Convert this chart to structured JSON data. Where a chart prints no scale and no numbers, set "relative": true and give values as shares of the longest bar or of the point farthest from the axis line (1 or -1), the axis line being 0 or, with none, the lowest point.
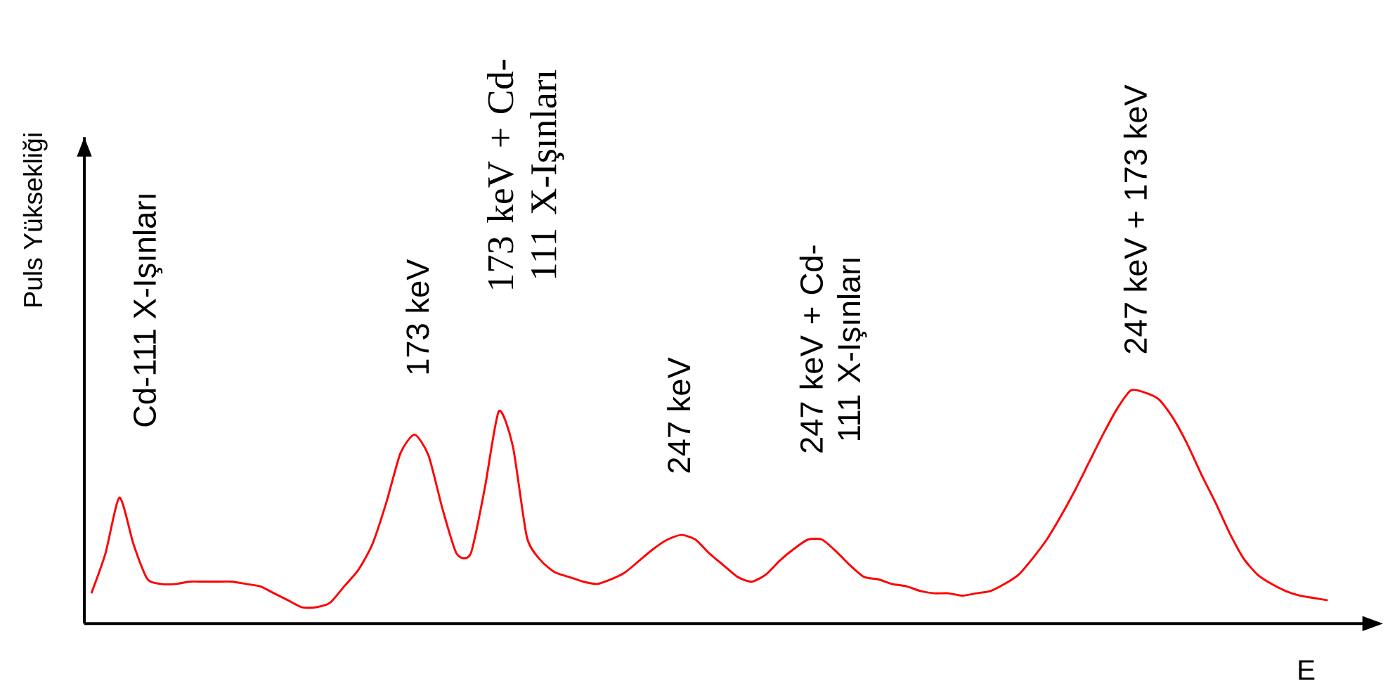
{
  "chart_data": {
    "type": "line",
    "relative": true,
    "ylabel": "Puls Yüksekliği",
    "xlabel": "E",
    "categories": [
      null,
      null,
      null,
      null,
      null,
      null,
      null,
      null,
      null,
      null,
      null,
      null,
      null,
      null,
      null,
      null,
      null,
      null,
      null,
      null,
      null,
      null,
      null,
      null,
      null,
      null,
      null,
      null,
      null,
      null,
      null,
      null,
      null,
      null,
      null,
      null,
      null,
      null,
      null,
      null,
      null,
      null,
      null,
      null,
      null,
      null,
      null,
      null,
      null,
      null,
      null,
      null,
      null,
      null,
      null,
      null,
      null,
      null,
      null,
      null,
      null,
      null,
      null,
      null,
      null,
      null,
      null,
      null,
      null,
      null,
      null,
      null,
      null,
      null,
      null,
      null,
      null,
      null,
      null,
      null,
      null,
      null,
      null,
      null,
      null,
      null,
      null,
      null,
      null
    ],
    "series": [
      {
        "color": "#ff0000",
        "values": [
          0.13,
          0.3,
          0.54,
          0.34,
          0.19,
          0.17,
          0.17,
          0.18,
          0.18,
          0.18,
          0.18,
          0.17,
          0.16,
          0.13,
          0.1,
          0.07,
          0.07,
          0.09,
          0.16,
          0.23,
          0.34,
          0.52,
          0.73,
          0.81,
          0.72,
          0.49,
          0.3,
          0.3,
          0.58,
          0.91,
          0.76,
          0.37,
          0.27,
          0.22,
          0.2,
          0.18,
          0.17,
          0.19,
          0.22,
          0.27,
          0.32,
          0.36,
          0.38,
          0.36,
          0.3,
          0.25,
          0.2,
          0.18,
          0.21,
          0.27,
          0.32,
          0.36,
          0.36,
          0.31,
          0.25,
          0.2,
          0.19,
          0.17,
          0.16,
          0.14,
          0.13,
          0.13,
          0.12,
          0.13,
          0.14,
          0.17,
          0.21,
          0.28,
          0.36,
          0.46,
          0.57,
          0.69,
          0.81,
          0.92,
          1.0,
          0.99,
          0.96,
          0.88,
          0.77,
          0.64,
          0.52,
          0.39,
          0.28,
          0.21,
          0.17,
          0.14,
          0.12,
          0.11,
          0.1
        ]
      }
    ],
    "line_style": "solid",
    "annotations": [
      "Cd-111 X-Işınları",
      "173 keV",
      "173 keV + Cd-111 X-Işınları",
      "247 keV",
      "247 keV + Cd-111 X-Işınları",
      "247 keV + 173 keV"
    ]
  }
}
